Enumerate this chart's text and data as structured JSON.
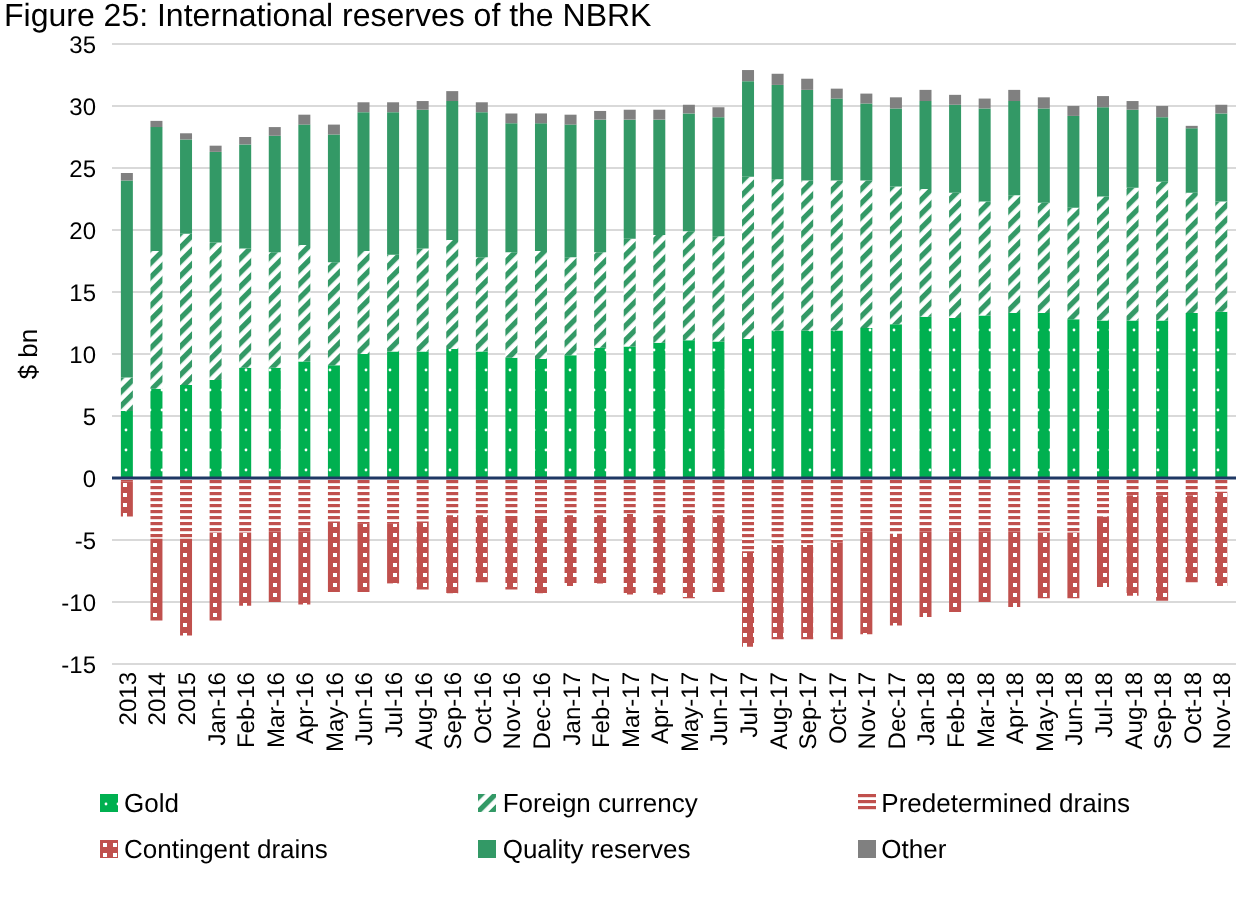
{
  "chart_data": {
    "type": "bar",
    "title": "Figure 25: International reserves of the NBRK",
    "ylabel": "$ bn",
    "stacked": true,
    "categories": [
      "2013",
      "2014",
      "2015",
      "Jan-16",
      "Feb-16",
      "Mar-16",
      "Apr-16",
      "May-16",
      "Jun-16",
      "Jul-16",
      "Aug-16",
      "Sep-16",
      "Oct-16",
      "Nov-16",
      "Dec-16",
      "Jan-17",
      "Feb-17",
      "Mar-17",
      "Apr-17",
      "May-17",
      "Jun-17",
      "Jul-17",
      "Aug-17",
      "Sep-17",
      "Oct-17",
      "Nov-17",
      "Dec-17",
      "Jan-18",
      "Feb-18",
      "Mar-18",
      "Apr-18",
      "May-18",
      "Jun-18",
      "Jul-18",
      "Aug-18",
      "Sep-18",
      "Oct-18",
      "Nov-18"
    ],
    "series": [
      {
        "name": "Gold",
        "color": "#00b050",
        "values": [
          5.4,
          7.2,
          7.5,
          7.9,
          8.9,
          8.9,
          9.4,
          9.1,
          10.0,
          10.2,
          10.2,
          10.4,
          10.2,
          9.7,
          9.6,
          9.9,
          10.5,
          10.6,
          10.9,
          11.1,
          11.0,
          11.2,
          11.9,
          11.9,
          11.9,
          12.1,
          12.4,
          13.0,
          12.9,
          13.1,
          13.3,
          13.3,
          12.8,
          12.7,
          12.7,
          12.7,
          13.3,
          13.4
        ]
      },
      {
        "name": "Foreign currency",
        "color": "#339966",
        "values": [
          2.7,
          11.1,
          12.2,
          11.1,
          9.6,
          9.3,
          9.4,
          8.3,
          8.3,
          7.8,
          8.3,
          8.8,
          7.6,
          8.5,
          8.7,
          7.9,
          7.7,
          8.7,
          8.7,
          8.8,
          8.5,
          13.1,
          12.2,
          12.1,
          12.1,
          11.9,
          11.1,
          10.3,
          10.1,
          9.2,
          9.5,
          8.9,
          9.0,
          10.0,
          10.7,
          11.2,
          9.7,
          8.9
        ]
      },
      {
        "name": "Predetermined drains",
        "color": "#c0504d",
        "values": [
          -0.3,
          -4.9,
          -4.9,
          -4.4,
          -4.4,
          -4.3,
          -4.3,
          -3.5,
          -3.7,
          -3.7,
          -3.5,
          -3.0,
          -3.0,
          -3.3,
          -3.3,
          -3.0,
          -3.0,
          -2.9,
          -3.0,
          -3.0,
          -3.0,
          -5.9,
          -5.4,
          -5.4,
          -5.2,
          -4.3,
          -4.5,
          -4.3,
          -4.3,
          -4.3,
          -4.3,
          -4.4,
          -4.4,
          -3.1,
          -1.4,
          -1.4,
          -1.4,
          -1.1
        ]
      },
      {
        "name": "Contingent drains",
        "color": "#c0504d",
        "values": [
          -2.8,
          -6.6,
          -7.8,
          -7.1,
          -5.9,
          -5.7,
          -5.9,
          -5.7,
          -5.5,
          -4.8,
          -5.5,
          -6.3,
          -5.4,
          -5.7,
          -6.0,
          -5.7,
          -5.5,
          -6.5,
          -6.4,
          -6.7,
          -6.2,
          -7.7,
          -7.6,
          -7.6,
          -7.8,
          -8.3,
          -7.4,
          -6.9,
          -6.5,
          -5.7,
          -6.1,
          -5.3,
          -5.3,
          -5.7,
          -8.1,
          -8.5,
          -7.0,
          -7.6
        ]
      },
      {
        "name": "Quality reserves",
        "color": "#339966",
        "values": [
          15.9,
          10.0,
          7.6,
          7.3,
          8.4,
          9.4,
          9.7,
          10.3,
          11.2,
          11.5,
          11.2,
          11.2,
          11.7,
          10.4,
          10.3,
          10.7,
          10.7,
          9.6,
          9.3,
          9.5,
          9.6,
          7.7,
          7.6,
          7.3,
          6.6,
          6.2,
          6.3,
          7.1,
          7.1,
          7.5,
          7.6,
          7.6,
          7.4,
          7.2,
          6.3,
          5.2,
          5.2,
          7.1
        ]
      },
      {
        "name": "Other",
        "color": "#808080",
        "values": [
          0.6,
          0.5,
          0.5,
          0.5,
          0.6,
          0.7,
          0.8,
          0.8,
          0.8,
          0.8,
          0.7,
          0.8,
          0.8,
          0.8,
          0.8,
          0.8,
          0.7,
          0.8,
          0.8,
          0.7,
          0.8,
          0.9,
          0.9,
          0.9,
          0.8,
          0.8,
          0.9,
          0.9,
          0.8,
          0.8,
          0.9,
          0.9,
          0.8,
          0.9,
          0.7,
          0.9,
          0.2,
          0.7
        ]
      }
    ],
    "ylim": [
      -15,
      35
    ],
    "yticks": [
      -15,
      -10,
      -5,
      0,
      5,
      10,
      15,
      20,
      25,
      30,
      35
    ],
    "grid": "y",
    "legend": "bottom",
    "ref_lines": [
      {
        "axis": "y",
        "value": 0,
        "color": "#1f3864"
      }
    ]
  }
}
